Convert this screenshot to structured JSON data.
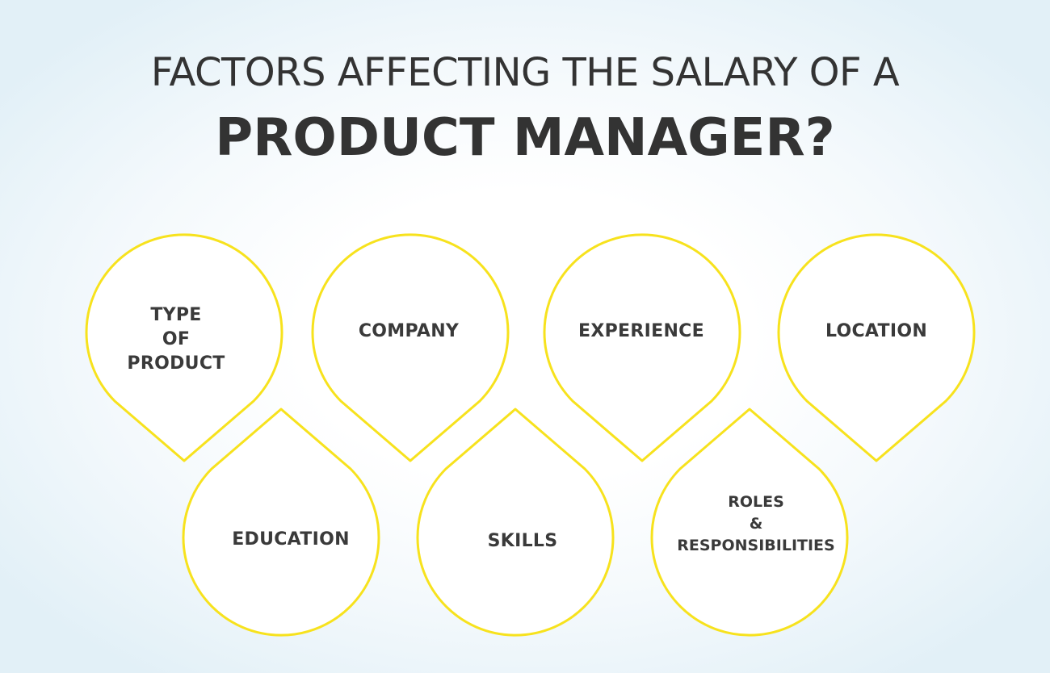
{
  "title": {
    "line1": "FACTORS AFFECTING THE SALARY OF A",
    "line2": "PRODUCT MANAGER?"
  },
  "factors": [
    {
      "lines": [
        "TYPE",
        "OF",
        "PRODUCT"
      ]
    },
    {
      "lines": [
        "COMPANY"
      ]
    },
    {
      "lines": [
        "EXPERIENCE"
      ]
    },
    {
      "lines": [
        "LOCATION"
      ]
    },
    {
      "lines": [
        "EDUCATION"
      ]
    },
    {
      "lines": [
        "SKILLS"
      ]
    },
    {
      "lines": [
        "ROLES",
        "&",
        "RESPONSIBILITIES"
      ]
    }
  ],
  "colors": {
    "outline": "#f7e21d",
    "text": "#363636",
    "background_edge": "#e2f0f7"
  }
}
